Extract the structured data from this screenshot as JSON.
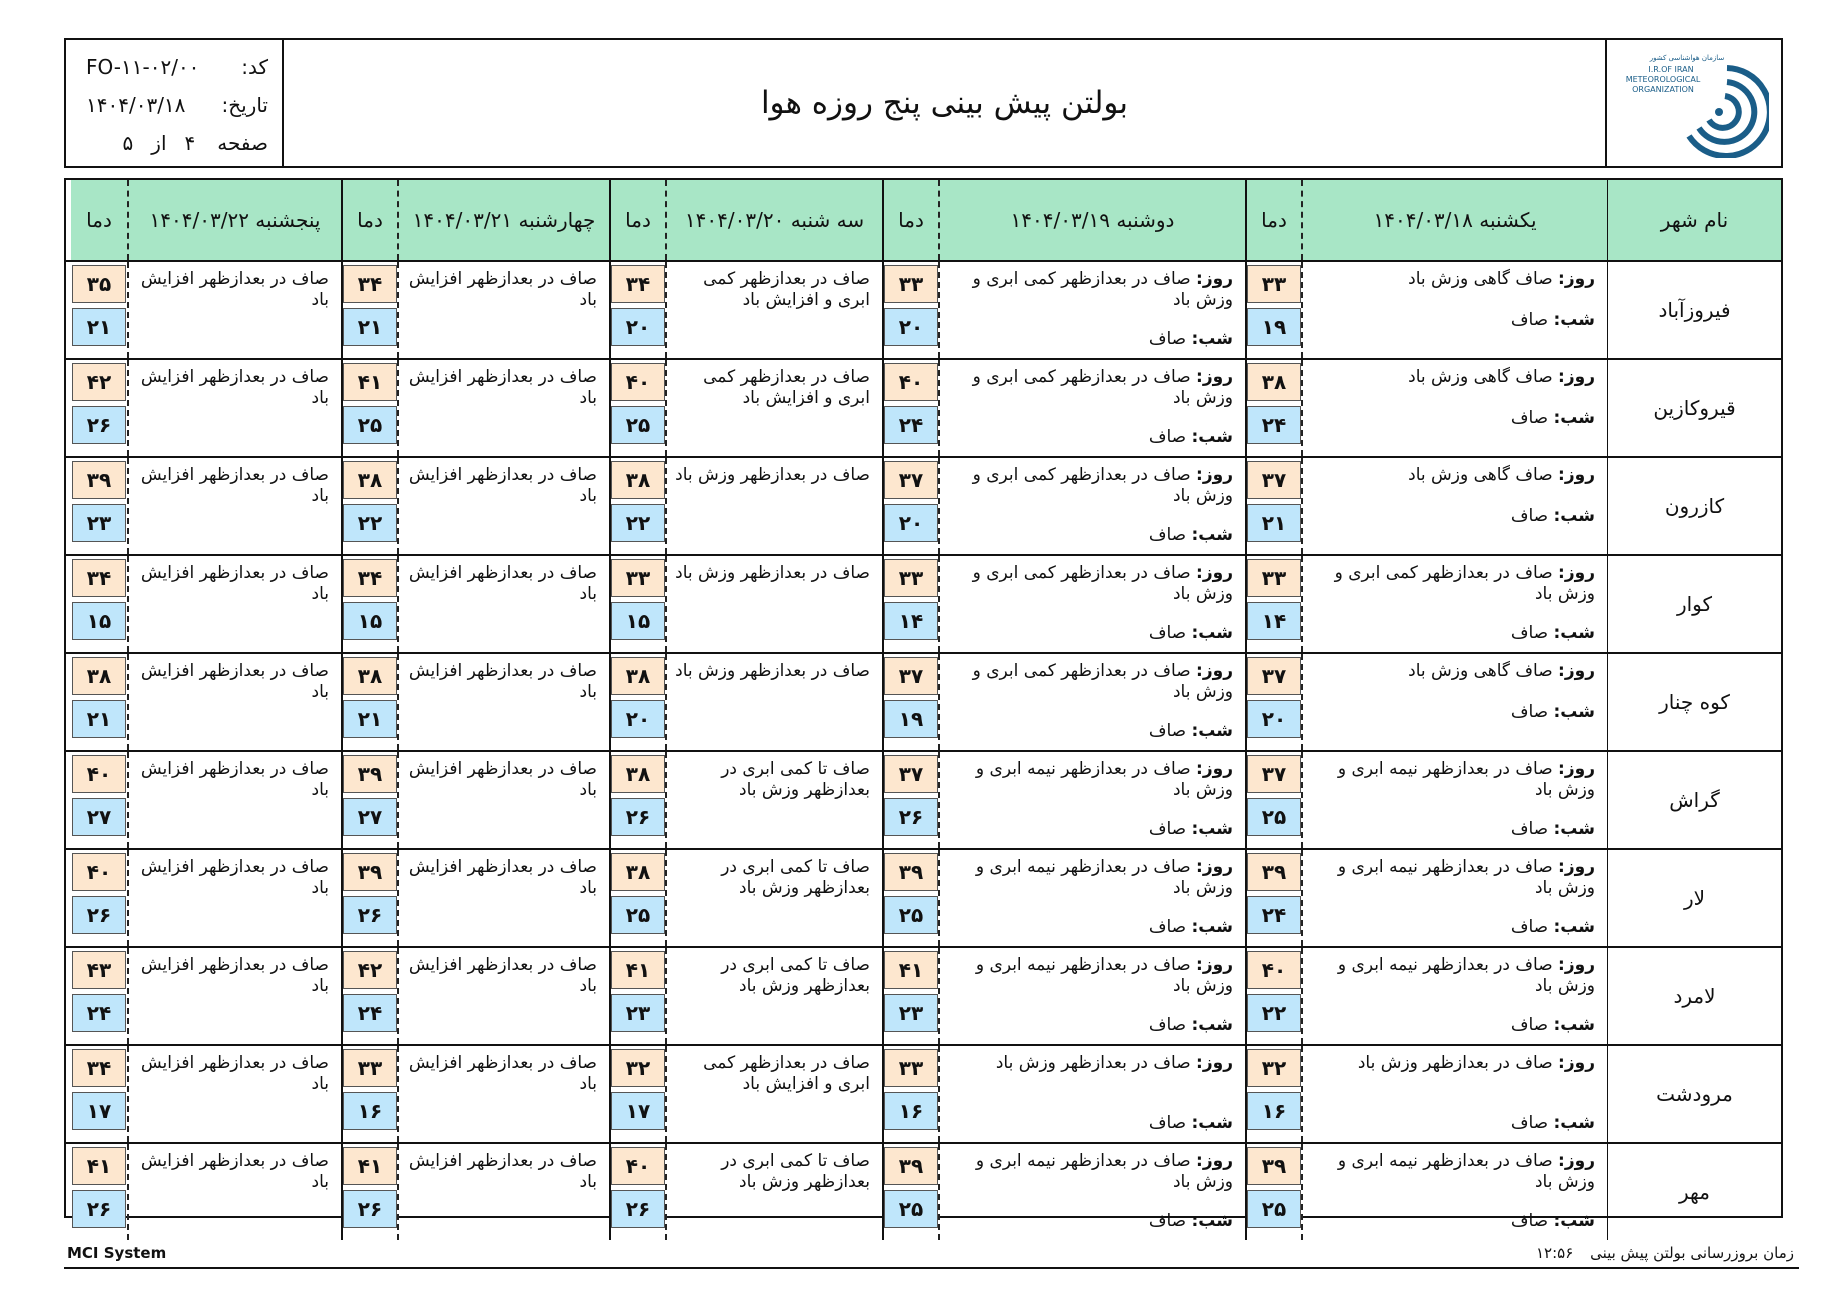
{
  "header": {
    "title": "بولتن پیش بینی پنج روزه هوا",
    "code_label": "کد:",
    "code_value": "FO-۱۱-۰۲/۰۰",
    "date_label": "تاریخ:",
    "date_value": "۱۴۰۴/۰۳/۱۸",
    "page_label": "صفحه",
    "page_num": "۴",
    "page_of": "از",
    "page_total": "۵",
    "logo_fa": "سازمان هواشناسی کشور",
    "logo_en1": "I.R.OF IRAN",
    "logo_en2": "METEOROLOGICAL",
    "logo_en3": "ORGANIZATION"
  },
  "columns": {
    "city": "نام شهر",
    "temp": "دما",
    "days": [
      "یکشنبه ۱۴۰۴/۰۳/۱۸",
      "دوشنبه ۱۴۰۴/۰۳/۱۹",
      "سه شنبه ۱۴۰۴/۰۳/۲۰",
      "چهارشنبه ۱۴۰۴/۰۳/۲۱",
      "پنجشنبه ۱۴۰۴/۰۳/۲۲"
    ]
  },
  "labels": {
    "day": "روز:",
    "night": "شب:"
  },
  "rows": [
    {
      "city": "فیروزآباد",
      "d1": {
        "day": " صاف گاهی وزش باد",
        "night": " صاف",
        "hi": "۳۳",
        "lo": "۱۹"
      },
      "d2": {
        "day": " صاف در بعدازظهر کمی ابری و وزش باد",
        "night": " صاف",
        "hi": "۳۳",
        "lo": "۲۰"
      },
      "d3": {
        "text": "صاف در بعدازظهر کمی ابری و افزایش باد",
        "hi": "۳۴",
        "lo": "۲۰"
      },
      "d4": {
        "text": "صاف در بعدازظهر افزایش باد",
        "hi": "۳۴",
        "lo": "۲۱"
      },
      "d5": {
        "text": "صاف در بعدازظهر افزایش باد",
        "hi": "۳۵",
        "lo": "۲۱"
      }
    },
    {
      "city": "قیروکازین",
      "d1": {
        "day": " صاف گاهی وزش باد",
        "night": " صاف",
        "hi": "۳۸",
        "lo": "۲۴"
      },
      "d2": {
        "day": " صاف در بعدازظهر کمی ابری و وزش باد",
        "night": " صاف",
        "hi": "۴۰",
        "lo": "۲۴"
      },
      "d3": {
        "text": "صاف در بعدازظهر کمی ابری و افزایش باد",
        "hi": "۴۰",
        "lo": "۲۵"
      },
      "d4": {
        "text": "صاف در بعدازظهر افزایش باد",
        "hi": "۴۱",
        "lo": "۲۵"
      },
      "d5": {
        "text": "صاف در بعدازظهر افزایش باد",
        "hi": "۴۲",
        "lo": "۲۶"
      }
    },
    {
      "city": "کازرون",
      "d1": {
        "day": " صاف گاهی وزش باد",
        "night": " صاف",
        "hi": "۳۷",
        "lo": "۲۱"
      },
      "d2": {
        "day": " صاف در بعدازظهر کمی ابری و وزش باد",
        "night": " صاف",
        "hi": "۳۷",
        "lo": "۲۰"
      },
      "d3": {
        "text": "صاف در بعدازظهر وزش باد",
        "hi": "۳۸",
        "lo": "۲۲"
      },
      "d4": {
        "text": "صاف در بعدازظهر افزایش باد",
        "hi": "۳۸",
        "lo": "۲۲"
      },
      "d5": {
        "text": "صاف در بعدازظهر افزایش باد",
        "hi": "۳۹",
        "lo": "۲۳"
      }
    },
    {
      "city": "کوار",
      "d1": {
        "day": " صاف در بعدازظهر کمی ابری و وزش باد",
        "night": " صاف",
        "hi": "۳۳",
        "lo": "۱۴"
      },
      "d2": {
        "day": " صاف در بعدازظهر کمی ابری و وزش باد",
        "night": " صاف",
        "hi": "۳۳",
        "lo": "۱۴"
      },
      "d3": {
        "text": "صاف در بعدازظهر وزش باد",
        "hi": "۳۳",
        "lo": "۱۵"
      },
      "d4": {
        "text": "صاف در بعدازظهر افزایش باد",
        "hi": "۳۴",
        "lo": "۱۵"
      },
      "d5": {
        "text": "صاف در بعدازظهر افزایش باد",
        "hi": "۳۴",
        "lo": "۱۵"
      }
    },
    {
      "city": "کوه چنار",
      "d1": {
        "day": " صاف گاهی وزش باد",
        "night": " صاف",
        "hi": "۳۷",
        "lo": "۲۰"
      },
      "d2": {
        "day": " صاف در بعدازظهر کمی ابری و وزش باد",
        "night": " صاف",
        "hi": "۳۷",
        "lo": "۱۹"
      },
      "d3": {
        "text": "صاف در بعدازظهر وزش باد",
        "hi": "۳۸",
        "lo": "۲۰"
      },
      "d4": {
        "text": "صاف در بعدازظهر افزایش باد",
        "hi": "۳۸",
        "lo": "۲۱"
      },
      "d5": {
        "text": "صاف در بعدازظهر افزایش باد",
        "hi": "۳۸",
        "lo": "۲۱"
      }
    },
    {
      "city": "گراش",
      "d1": {
        "day": " صاف در بعدازظهر نیمه ابری و وزش باد",
        "night": " صاف",
        "hi": "۳۷",
        "lo": "۲۵"
      },
      "d2": {
        "day": " صاف در بعدازظهر نیمه ابری و وزش باد",
        "night": " صاف",
        "hi": "۳۷",
        "lo": "۲۶"
      },
      "d3": {
        "text": "صاف تا کمی ابری در بعدازظهر وزش باد",
        "hi": "۳۸",
        "lo": "۲۶"
      },
      "d4": {
        "text": "صاف در بعدازظهر افزایش باد",
        "hi": "۳۹",
        "lo": "۲۷"
      },
      "d5": {
        "text": "صاف در بعدازظهر افزایش باد",
        "hi": "۴۰",
        "lo": "۲۷"
      }
    },
    {
      "city": "لار",
      "d1": {
        "day": " صاف در بعدازظهر نیمه ابری و وزش باد",
        "night": " صاف",
        "hi": "۳۹",
        "lo": "۲۴"
      },
      "d2": {
        "day": " صاف در بعدازظهر نیمه ابری و وزش باد",
        "night": " صاف",
        "hi": "۳۹",
        "lo": "۲۵"
      },
      "d3": {
        "text": "صاف تا کمی ابری در بعدازظهر وزش باد",
        "hi": "۳۸",
        "lo": "۲۵"
      },
      "d4": {
        "text": "صاف در بعدازظهر افزایش باد",
        "hi": "۳۹",
        "lo": "۲۶"
      },
      "d5": {
        "text": "صاف در بعدازظهر افزایش باد",
        "hi": "۴۰",
        "lo": "۲۶"
      }
    },
    {
      "city": "لامرد",
      "d1": {
        "day": " صاف در بعدازظهر نیمه ابری و وزش باد",
        "night": " صاف",
        "hi": "۴۰",
        "lo": "۲۲"
      },
      "d2": {
        "day": " صاف در بعدازظهر نیمه ابری و وزش باد",
        "night": " صاف",
        "hi": "۴۱",
        "lo": "۲۳"
      },
      "d3": {
        "text": "صاف تا کمی ابری در بعدازظهر وزش باد",
        "hi": "۴۱",
        "lo": "۲۳"
      },
      "d4": {
        "text": "صاف در بعدازظهر افزایش باد",
        "hi": "۴۲",
        "lo": "۲۴"
      },
      "d5": {
        "text": "صاف در بعدازظهر افزایش باد",
        "hi": "۴۳",
        "lo": "۲۴"
      }
    },
    {
      "city": "مرودشت",
      "d1": {
        "day": " صاف در بعدازظهر وزش باد",
        "night": " صاف",
        "hi": "۳۲",
        "lo": "۱۶"
      },
      "d2": {
        "day": " صاف در بعدازظهر وزش باد",
        "night": " صاف",
        "hi": "۳۳",
        "lo": "۱۶"
      },
      "d3": {
        "text": "صاف در بعدازظهر کمی ابری و افزایش باد",
        "hi": "۳۲",
        "lo": "۱۷"
      },
      "d4": {
        "text": "صاف در بعدازظهر افزایش باد",
        "hi": "۳۳",
        "lo": "۱۶"
      },
      "d5": {
        "text": "صاف در بعدازظهر افزایش باد",
        "hi": "۳۴",
        "lo": "۱۷"
      }
    },
    {
      "city": "مهر",
      "d1": {
        "day": " صاف در بعدازظهر نیمه ابری و وزش باد",
        "night": " صاف",
        "hi": "۳۹",
        "lo": "۲۵"
      },
      "d2": {
        "day": " صاف در بعدازظهر نیمه ابری و وزش باد",
        "night": " صاف",
        "hi": "۳۹",
        "lo": "۲۵"
      },
      "d3": {
        "text": "صاف تا کمی ابری در بعدازظهر وزش باد",
        "hi": "۴۰",
        "lo": "۲۶"
      },
      "d4": {
        "text": "صاف در بعدازظهر افزایش باد",
        "hi": "۴۱",
        "lo": "۲۶"
      },
      "d5": {
        "text": "صاف در بعدازظهر افزایش باد",
        "hi": "۴۱",
        "lo": "۲۶"
      }
    }
  ],
  "footer": {
    "system": "MCI System",
    "update_label": "زمان بروزرسانی بولتن پیش بینی",
    "update_time": "۱۲:۵۶"
  }
}
